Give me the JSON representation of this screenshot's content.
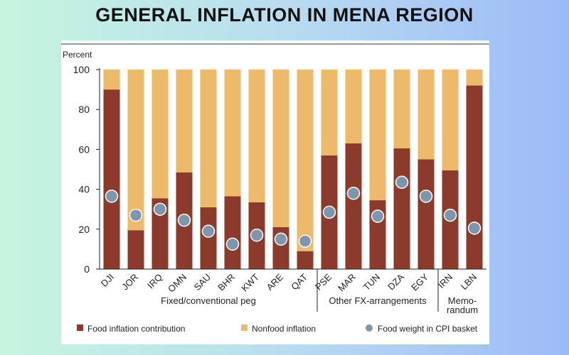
{
  "page": {
    "title": "GENERAL INFLATION IN MENA REGION"
  },
  "chart_data": {
    "type": "bar",
    "stacked": true,
    "ylabel": "Percent",
    "ylim": [
      0,
      100
    ],
    "yticks": [
      0,
      20,
      40,
      60,
      80,
      100
    ],
    "grid": false,
    "categories": [
      "DJI",
      "JOR",
      "IRQ",
      "OMN",
      "SAU",
      "BHR",
      "KWT",
      "ARE",
      "QAT",
      "PSE",
      "MAR",
      "TUN",
      "DZA",
      "EGY",
      "IRN",
      "LBN"
    ],
    "groups": [
      {
        "label": "Fixed/conventional peg",
        "start": 0,
        "end": 8
      },
      {
        "label": "Other FX-arrangements",
        "start": 9,
        "end": 13
      },
      {
        "label": "Memo-\nrandum",
        "start": 14,
        "end": 15
      }
    ],
    "series": [
      {
        "name": "Food inflation contribution",
        "kind": "bar",
        "color": "#8b3a2b",
        "values": [
          90,
          19.5,
          35.5,
          48.5,
          31,
          36.5,
          33.5,
          21,
          9,
          57,
          63,
          34.5,
          60.5,
          55,
          49.5,
          92
        ]
      },
      {
        "name": "Nonfood inflation",
        "kind": "bar",
        "color": "#edb96a",
        "values": [
          10,
          80.5,
          64.5,
          51.5,
          69,
          63.5,
          66.5,
          79,
          91,
          43,
          37,
          65.5,
          39.5,
          45,
          50.5,
          8
        ]
      },
      {
        "name": "Food weight in CPI basket",
        "kind": "point",
        "color": "#7e95ab",
        "values": [
          36.5,
          27,
          30,
          24.5,
          19,
          12.5,
          17,
          15,
          14,
          28.5,
          38,
          26.5,
          43.5,
          36.5,
          27,
          20.5
        ]
      }
    ],
    "legend": {
      "position": "bottom"
    }
  }
}
